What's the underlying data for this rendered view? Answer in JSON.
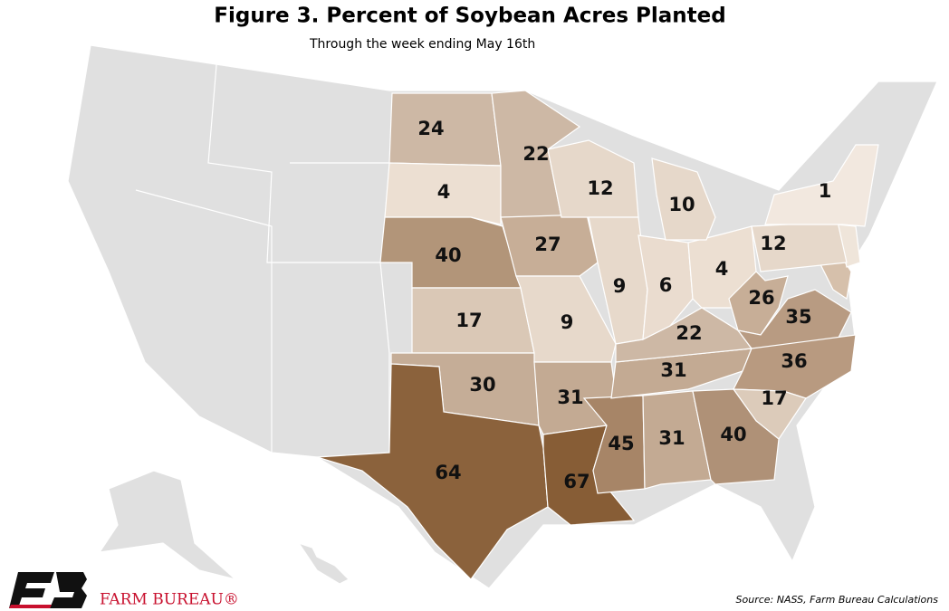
{
  "chart_data": {
    "type": "choropleth",
    "title": "Figure 3. Percent of Soybean Acres Planted",
    "subtitle": "Through the week ending May 16th",
    "source": "Source: NASS, Farm Bureau Calculations",
    "regions": [
      {
        "value": 24,
        "color": "#cdb8a5"
      },
      {
        "value": 4,
        "color": "#ecdfd2"
      },
      {
        "value": 40,
        "color": "#b29579"
      },
      {
        "value": 17,
        "color": "#dac8b6"
      },
      {
        "value": 30,
        "color": "#c5ad97"
      },
      {
        "value": 64,
        "color": "#8b623c"
      },
      {
        "value": 22,
        "color": "#cdb8a5"
      },
      {
        "value": 27,
        "color": "#c7ae97"
      },
      {
        "value": 9,
        "color": "#e7d9cb"
      },
      {
        "value": 31,
        "color": "#c3aa93"
      },
      {
        "value": 67,
        "color": "#875d36"
      },
      {
        "value": 12,
        "color": "#e6d8ca"
      },
      {
        "value": 9,
        "color": "#e7d9cb"
      },
      {
        "value": 45,
        "color": "#a78567"
      },
      {
        "value": 31,
        "color": "#c3aa93"
      },
      {
        "value": 31,
        "color": "#c3aa93"
      },
      {
        "value": 22,
        "color": "#cdb8a5"
      },
      {
        "value": 6,
        "color": "#eadccf"
      },
      {
        "value": 4,
        "color": "#ecdfd2"
      },
      {
        "value": 10,
        "color": "#e6d8ca"
      },
      {
        "value": 26,
        "color": "#c7ae97"
      },
      {
        "value": 35,
        "color": "#b89b82"
      },
      {
        "value": 36,
        "color": "#b89a80"
      },
      {
        "value": 17,
        "color": "#dccbba"
      },
      {
        "value": 40,
        "color": "#af9177"
      },
      {
        "value": 12,
        "color": "#e6d8ca"
      },
      {
        "value": 1,
        "color": "#f2e8df"
      }
    ]
  },
  "logo": "FARM BUREAU®"
}
